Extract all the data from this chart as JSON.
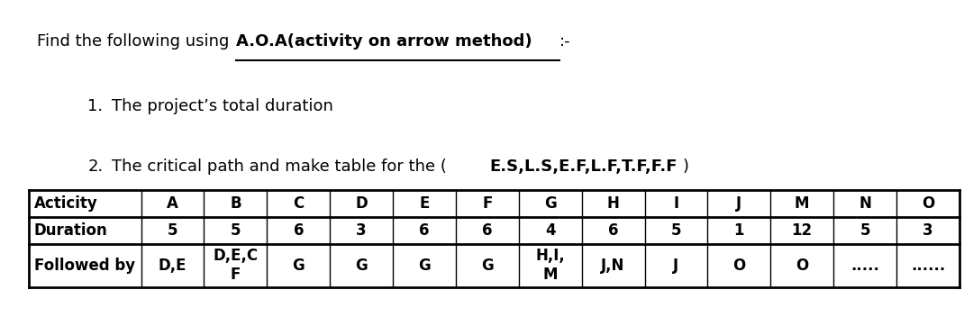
{
  "bg_color": "#ffffff",
  "text_color": "#000000",
  "title_normal": "Find the following using ",
  "title_bold_underline": "A.O.A(activity on arrow method)",
  "title_suffix": ":-",
  "point1_num": "1.",
  "point1_text": "  The project’s total duration",
  "point2_num": "2.",
  "point2_pre": "  The critical path and make table for the (",
  "point2_bold": "E.S,L.S,E.F,L.F,T.F,F.F",
  "point2_post": ")",
  "table_headers": [
    "Acticity",
    "A",
    "B",
    "C",
    "D",
    "E",
    "F",
    "G",
    "H",
    "I",
    "J",
    "M",
    "N",
    "O"
  ],
  "duration_row": [
    "Duration",
    "5",
    "5",
    "6",
    "3",
    "6",
    "6",
    "4",
    "6",
    "5",
    "1",
    "12",
    "5",
    "3"
  ],
  "followed_by_row_col0": "Followed by",
  "followed_by_data": [
    "D,E",
    "D,E,C\nF",
    "G",
    "G",
    "G",
    "G",
    "H,I,\nM",
    "J,N",
    "J",
    "O",
    "O",
    ".....",
    "......"
  ],
  "fontsize": 13,
  "table_fontsize": 12
}
